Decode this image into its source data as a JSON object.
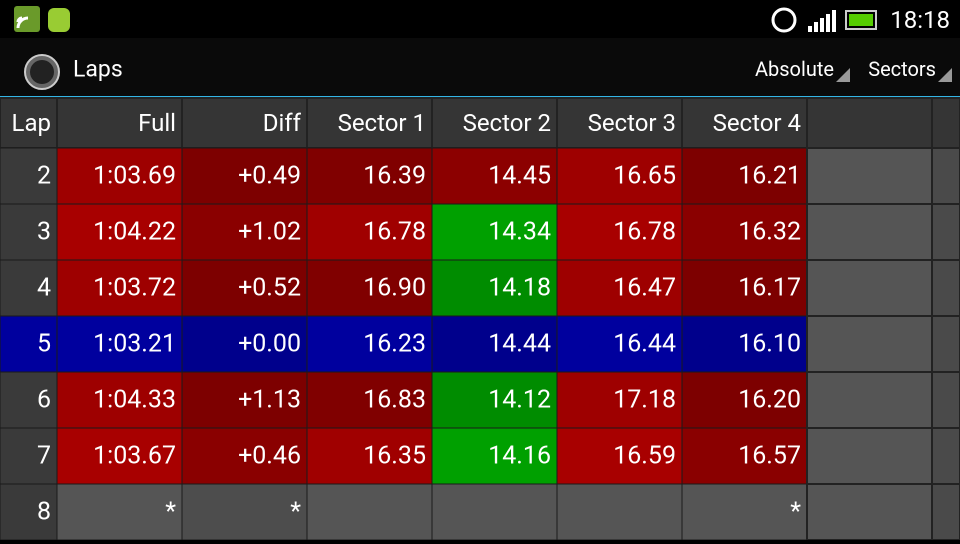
{
  "status_bar": {
    "time": "18:18"
  },
  "action_bar": {
    "title": "Laps",
    "buttons": [
      "Absolute",
      "Sectors"
    ]
  },
  "table": {
    "header": [
      "Lap",
      "Full",
      "Diff",
      "Sector 1",
      "Sector 2",
      "Sector 3",
      "Sector 4"
    ],
    "header_color": "#353535",
    "filler_colors": [
      "#555555",
      "#4a4a4a"
    ],
    "rows": [
      {
        "cells": [
          "2",
          "1:03.69",
          "+0.49",
          "16.39",
          "14.45",
          "16.65",
          "16.21"
        ],
        "colors": [
          "#3a3a3a",
          "#9e0000",
          "#7d0000",
          "#800000",
          "#8c0000",
          "#9e0000",
          "#7d0000"
        ]
      },
      {
        "cells": [
          "3",
          "1:04.22",
          "+1.02",
          "16.78",
          "14.34",
          "16.78",
          "16.32"
        ],
        "colors": [
          "#3a3a3a",
          "#a80000",
          "#8a0000",
          "#a00000",
          "#00a000",
          "#a80000",
          "#8a0000"
        ]
      },
      {
        "cells": [
          "4",
          "1:03.72",
          "+0.52",
          "16.90",
          "14.18",
          "16.47",
          "16.17"
        ],
        "colors": [
          "#3a3a3a",
          "#9e0000",
          "#7d0000",
          "#800000",
          "#008c00",
          "#9e0000",
          "#7d0000"
        ]
      },
      {
        "cells": [
          "5",
          "1:03.21",
          "+0.00",
          "16.23",
          "14.44",
          "16.44",
          "16.10"
        ],
        "colors": [
          "#00009e",
          "#00009e",
          "#00008c",
          "#00009e",
          "#00008c",
          "#00009e",
          "#00008c"
        ]
      },
      {
        "cells": [
          "6",
          "1:04.33",
          "+1.13",
          "16.83",
          "14.12",
          "17.18",
          "16.20"
        ],
        "colors": [
          "#3a3a3a",
          "#9e0000",
          "#7d0000",
          "#800000",
          "#008c00",
          "#9e0000",
          "#7d0000"
        ]
      },
      {
        "cells": [
          "7",
          "1:03.67",
          "+0.46",
          "16.35",
          "14.16",
          "16.59",
          "16.57"
        ],
        "colors": [
          "#3a3a3a",
          "#a80000",
          "#8a0000",
          "#a00000",
          "#00a000",
          "#a80000",
          "#8a0000"
        ]
      },
      {
        "cells": [
          "8",
          "*",
          "*",
          null,
          null,
          null,
          "*"
        ],
        "colors": [
          "#3a3a3a",
          "#555555",
          "#4d4d4d",
          "#555555",
          "#555555",
          "#555555",
          "#555555"
        ]
      }
    ]
  }
}
